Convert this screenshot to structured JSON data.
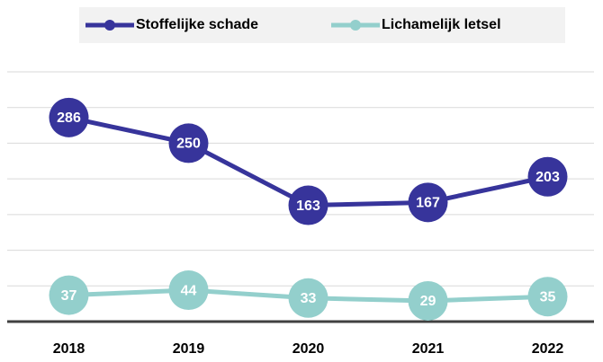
{
  "chart_data": {
    "type": "line",
    "categories": [
      "2018",
      "2019",
      "2020",
      "2021",
      "2022"
    ],
    "series": [
      {
        "name": "Stoffelijke schade",
        "color": "#37349b",
        "values": [
          286,
          250,
          163,
          167,
          203
        ]
      },
      {
        "name": "Lichamelijk letsel",
        "color": "#93cfcc",
        "values": [
          37,
          44,
          33,
          29,
          35
        ]
      }
    ],
    "ylim": [
      0,
      350
    ],
    "yticks": [
      0,
      50,
      100,
      150,
      200,
      250,
      300,
      350
    ],
    "grid": true,
    "legend": "top"
  }
}
